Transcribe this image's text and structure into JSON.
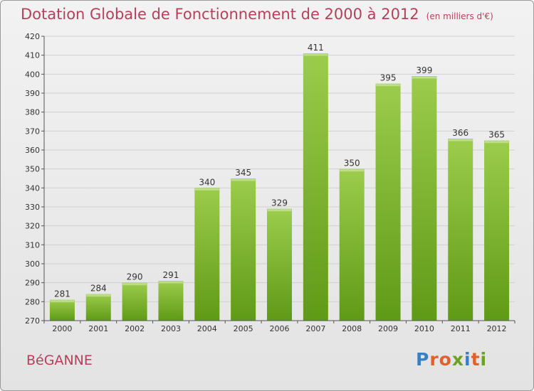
{
  "header": {
    "title": "Dotation Globale de Fonctionnement de 2000 à 2012",
    "unit": "(en milliers d'€)"
  },
  "footer": {
    "town": "BéGANNE",
    "logo": "Proxiti",
    "logo_colors": [
      "#3a7fc4",
      "#e0622a",
      "#e0622a",
      "#6aa323",
      "#3a7fc4",
      "#e0622a",
      "#6aa323"
    ]
  },
  "colors": {
    "title": "#b5405b",
    "bar_light": "#9ccc4c",
    "bar_dark": "#5f9a17",
    "axis": "#555555",
    "grid": "#d0d0d0"
  },
  "chart_data": {
    "type": "bar",
    "title": "Dotation Globale de Fonctionnement de 2000 à 2012",
    "subtitle": "(en milliers d'€)",
    "xlabel": "",
    "ylabel": "",
    "categories": [
      "2000",
      "2001",
      "2002",
      "2003",
      "2004",
      "2005",
      "2006",
      "2007",
      "2008",
      "2009",
      "2010",
      "2011",
      "2012"
    ],
    "values": [
      281,
      284,
      290,
      291,
      340,
      345,
      329,
      411,
      350,
      395,
      399,
      366,
      365
    ],
    "ylim": [
      270,
      420
    ],
    "yticks": [
      270,
      280,
      290,
      300,
      310,
      320,
      330,
      340,
      350,
      360,
      370,
      380,
      390,
      400,
      410,
      420
    ],
    "grid": true,
    "legend": "none"
  }
}
